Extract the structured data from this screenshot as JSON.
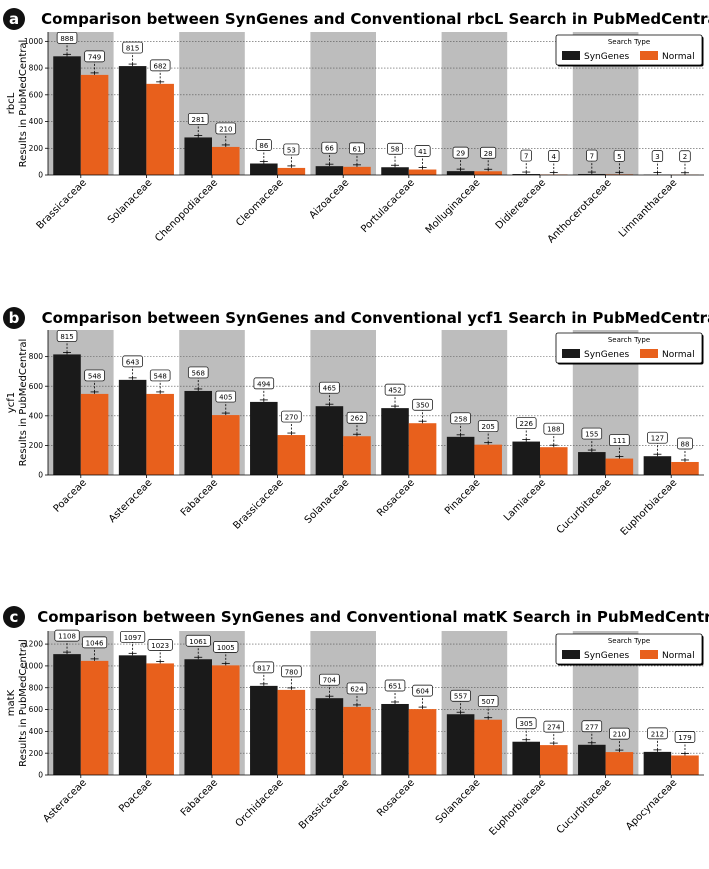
{
  "colors": {
    "syngenes": "#1a1a1a",
    "normal": "#e8601c",
    "band": "#bdbdbd",
    "grid": "#555555"
  },
  "chart_data": [
    {
      "type": "bar",
      "panel": "a",
      "title": "Comparison between SynGenes and Conventional rbcL Search in PubMedCentral",
      "ylabel_gene": "rbcL",
      "ylabel": "Results in PubMedCentral",
      "ylim": [
        0,
        1070
      ],
      "yticks": [
        0,
        200,
        400,
        600,
        800,
        1000
      ],
      "categories": [
        "Brassicaceae",
        "Solanaceae",
        "Chenopodiaceae",
        "Cleomaceae",
        "Aizoaceae",
        "Portulacaceae",
        "Molluginaceae",
        "Didiereaceae",
        "Anthocerotaceae",
        "Limnanthaceae"
      ],
      "series": [
        {
          "name": "SynGenes",
          "values": [
            888,
            815,
            281,
            86,
            66,
            58,
            29,
            7,
            7,
            3
          ]
        },
        {
          "name": "Normal",
          "values": [
            749,
            682,
            210,
            53,
            61,
            41,
            28,
            4,
            5,
            2
          ]
        }
      ],
      "legend_title": "Search Type",
      "legend_position": "top-right"
    },
    {
      "type": "bar",
      "panel": "b",
      "title": "Comparison between SynGenes and Conventional ycf1 Search in PubMedCentral",
      "ylabel_gene": "ycf1",
      "ylabel": "Results in PubMedCentral",
      "ylim": [
        0,
        980
      ],
      "yticks": [
        0,
        200,
        400,
        600,
        800
      ],
      "categories": [
        "Poaceae",
        "Asteraceae",
        "Fabaceae",
        "Brassicaceae",
        "Solanaceae",
        "Rosaceae",
        "Pinaceae",
        "Lamiaceae",
        "Cucurbitaceae",
        "Euphorbiaceae"
      ],
      "series": [
        {
          "name": "SynGenes",
          "values": [
            815,
            643,
            568,
            494,
            465,
            452,
            258,
            226,
            155,
            127
          ]
        },
        {
          "name": "Normal",
          "values": [
            548,
            548,
            405,
            270,
            262,
            350,
            205,
            188,
            111,
            88
          ]
        }
      ],
      "legend_title": "Search Type",
      "legend_position": "top-right"
    },
    {
      "type": "bar",
      "panel": "c",
      "title": "Comparison between SynGenes and Conventional matK Search in PubMedCentral",
      "ylabel_gene": "matK",
      "ylabel": "Results in PubMedCentral",
      "ylim": [
        0,
        1320
      ],
      "yticks": [
        0,
        200,
        400,
        600,
        800,
        1000,
        1200
      ],
      "categories": [
        "Asteraceae",
        "Poaceae",
        "Fabaceae",
        "Orchidaceae",
        "Brassicaceae",
        "Rosaceae",
        "Solanaceae",
        "Euphorbiaceae",
        "Cucurbitaceae",
        "Apocynaceae"
      ],
      "series": [
        {
          "name": "SynGenes",
          "values": [
            1108,
            1097,
            1061,
            817,
            704,
            651,
            557,
            305,
            277,
            212
          ]
        },
        {
          "name": "Normal",
          "values": [
            1046,
            1023,
            1005,
            780,
            624,
            604,
            507,
            274,
            210,
            179
          ]
        }
      ],
      "legend_title": "Search Type",
      "legend_position": "top-right"
    }
  ]
}
